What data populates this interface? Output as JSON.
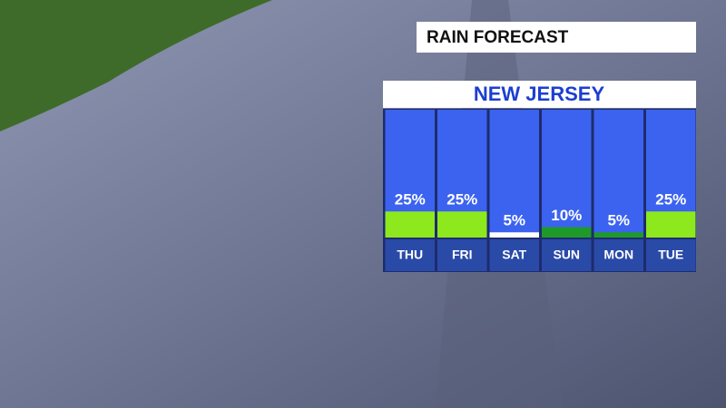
{
  "chart_data": {
    "type": "bar",
    "title": "RAIN FORECAST",
    "subtitle": "NEW JERSEY",
    "categories": [
      "THU",
      "FRI",
      "SAT",
      "SUN",
      "MON",
      "TUE"
    ],
    "values": [
      25,
      25,
      5,
      10,
      5,
      25
    ],
    "value_labels": [
      "25%",
      "25%",
      "5%",
      "10%",
      "5%",
      "25%"
    ],
    "colors": [
      "#8ee81e",
      "#8ee81e",
      "#ffffff",
      "#1f9a2a",
      "#1f9a2a",
      "#8ee81e"
    ]
  }
}
